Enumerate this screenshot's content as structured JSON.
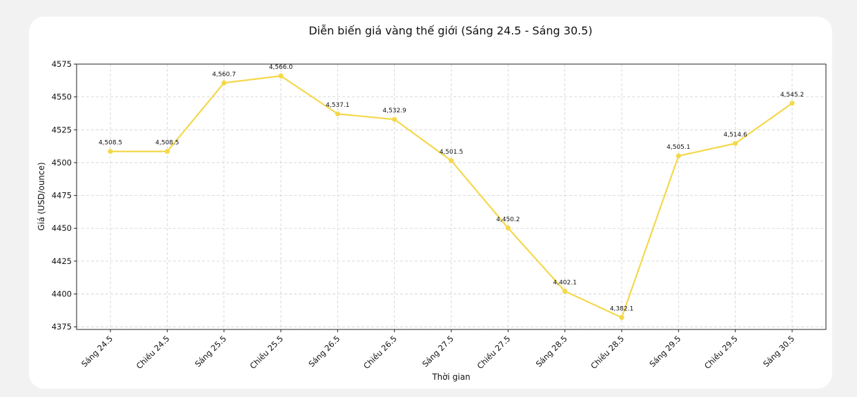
{
  "chart_data": {
    "type": "line",
    "title": "Diễn biến giá vàng thế giới (Sáng 24.5 - Sáng 30.5)",
    "xlabel": "Thời gian",
    "ylabel": "Giá (USD/ounce)",
    "categories": [
      "Sáng 24.5",
      "Chiều 24.5",
      "Sáng 25.5",
      "Chiều 25.5",
      "Sáng 26.5",
      "Chiều 26.5",
      "Sáng 27.5",
      "Chiều 27.5",
      "Sáng 28.5",
      "Chiều 28.5",
      "Sáng 29.5",
      "Chiều 29.5",
      "Sáng 30.5"
    ],
    "series": [
      {
        "values": [
          4508.5,
          4508.5,
          4560.7,
          4566.0,
          4537.1,
          4532.9,
          4501.5,
          4450.2,
          4402.1,
          4382.1,
          4505.1,
          4514.6,
          4545.2
        ],
        "data_labels": [
          "4,508.5",
          "4,508.5",
          "4,560.7",
          "4,566.0",
          "4,537.1",
          "4,532.9",
          "4,501.5",
          "4,450.2",
          "4,402.1",
          "4,382.1",
          "4,505.1",
          "4,514.6",
          "4,545.2"
        ],
        "color": "#f4d84a"
      }
    ],
    "yticks": [
      4375,
      4400,
      4425,
      4450,
      4475,
      4500,
      4525,
      4550,
      4575
    ],
    "ylim": [
      4373,
      4575
    ],
    "grid": true,
    "grid_style": "dashed"
  }
}
